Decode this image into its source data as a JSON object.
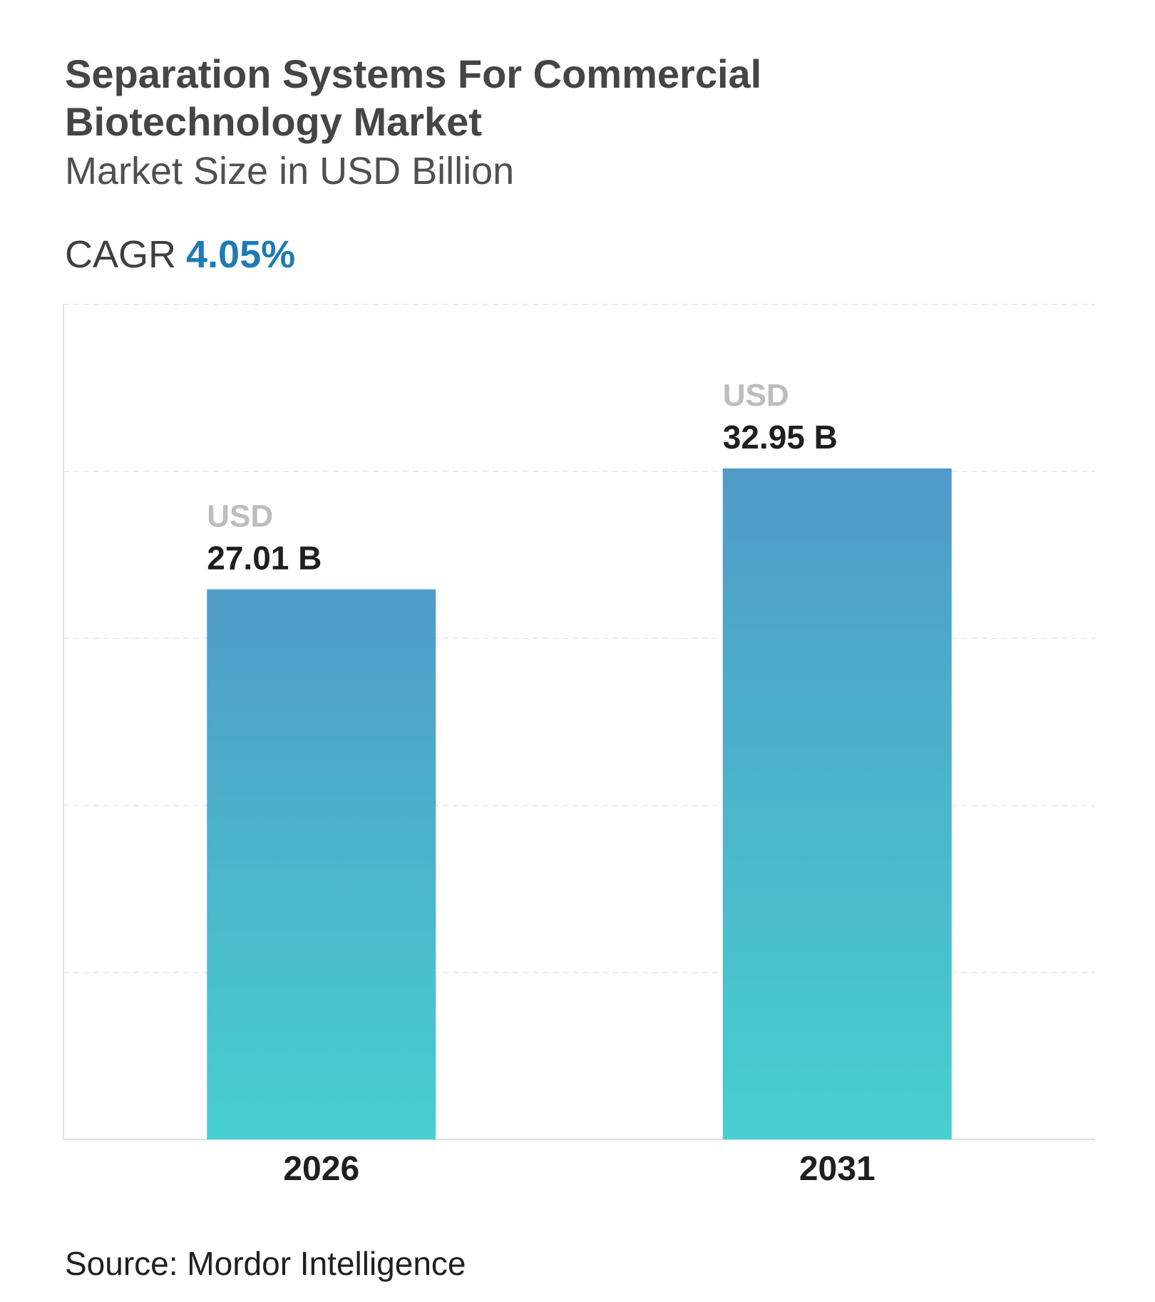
{
  "title": "Separation Systems For Commercial Biotechnology Market",
  "subtitle": "Market Size in USD Billion",
  "cagr": {
    "label": "CAGR",
    "value": "4.05%"
  },
  "source": "Source: Mordor Intelligence",
  "colors": {
    "bar_top": "#4f9bc8",
    "bar_bottom": "#47cfd0",
    "cagr_value": "#1e7bb3"
  },
  "chart_data": {
    "type": "bar",
    "categories": [
      "2026",
      "2031"
    ],
    "values": [
      27.01,
      32.95
    ],
    "data_labels": [
      {
        "unit": "USD",
        "value": "27.01 B"
      },
      {
        "unit": "USD",
        "value": "32.95 B"
      }
    ],
    "title": "Separation Systems For Commercial Biotechnology Market",
    "subtitle": "Market Size in USD Billion",
    "xlabel": "",
    "ylabel": "",
    "ylim": [
      0,
      41
    ],
    "grid": true,
    "y_axis_ticks_visible": false
  }
}
